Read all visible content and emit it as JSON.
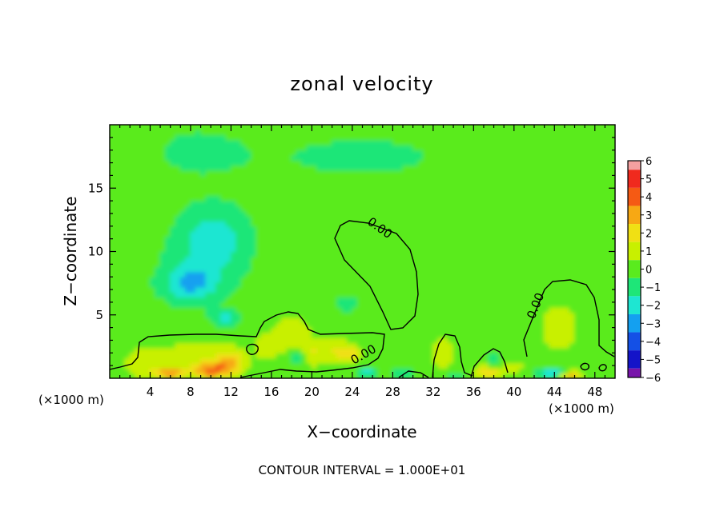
{
  "chart_data": {
    "type": "heatmap",
    "title": "zonal velocity",
    "xlabel": "X−coordinate",
    "ylabel": "Z−coordinate",
    "x_unit_left": "(×1000 m)",
    "x_unit_right": "(×1000 m)",
    "footer": "CONTOUR INTERVAL = 1.000E+01",
    "xlim": [
      0,
      50
    ],
    "ylim": [
      0,
      20
    ],
    "x_ticks": [
      4,
      8,
      12,
      16,
      20,
      24,
      28,
      32,
      36,
      40,
      44,
      48
    ],
    "x_tick_labels": [
      "4",
      "8",
      "12",
      "16",
      "20",
      "24",
      "28",
      "32",
      "36",
      "40",
      "44",
      "48"
    ],
    "y_ticks": [
      5,
      10,
      15
    ],
    "y_tick_labels": [
      "5",
      "10",
      "15"
    ],
    "colorbar": {
      "levels": [
        6,
        5,
        4,
        3,
        2,
        1,
        0,
        -1,
        -2,
        -3,
        -4,
        -5,
        -6
      ],
      "labels": [
        "6",
        "5",
        "4",
        "3",
        "2",
        "1",
        "0",
        "−1",
        "−2",
        "−3",
        "−4",
        "−5",
        "−6"
      ],
      "colors": [
        "#f4a0a0",
        "#f02a1e",
        "#f55a14",
        "#f7a814",
        "#f0e014",
        "#c8f000",
        "#5aeb1e",
        "#1ee678",
        "#1ee6d2",
        "#14a0f0",
        "#1450e6",
        "#1414c8",
        "#7814aa"
      ]
    },
    "contour_labels": [
      {
        "text": "0.00",
        "x": 26.5,
        "y": 11.6,
        "angle": 35
      },
      {
        "text": "0.00",
        "x": 25.3,
        "y": 1.6,
        "angle": -30
      },
      {
        "text": "0.00",
        "x": 42.5,
        "y": 5.6,
        "angle": -68
      }
    ],
    "field_features": [
      {
        "x": 8,
        "y": 7.5,
        "sx": 2.6,
        "sy": 1.3,
        "v": -2.3
      },
      {
        "x": 10.5,
        "y": 11,
        "sx": 3.2,
        "sy": 2.4,
        "v": -1.8
      },
      {
        "x": 9,
        "y": 9,
        "sx": 4.5,
        "sy": 3.5,
        "v": -0.8
      },
      {
        "x": 11.5,
        "y": 4.8,
        "sx": 1.4,
        "sy": 0.6,
        "v": -1.8
      },
      {
        "x": 23.5,
        "y": 5.9,
        "sx": 1.2,
        "sy": 0.6,
        "v": -1.2
      },
      {
        "x": 25,
        "y": 17.5,
        "sx": 14,
        "sy": 3,
        "v": -0.6
      },
      {
        "x": 8,
        "y": 18,
        "sx": 6,
        "sy": 3,
        "v": -0.5
      },
      {
        "x": 27,
        "y": 9,
        "sx": 2.5,
        "sy": 3,
        "v": 0.4
      },
      {
        "x": 44.5,
        "y": 4,
        "sx": 2.2,
        "sy": 2.2,
        "v": 0.9
      },
      {
        "x": 4,
        "y": 1.2,
        "sx": 2.5,
        "sy": 1.2,
        "v": 1.2
      },
      {
        "x": 10,
        "y": 0.6,
        "sx": 1.5,
        "sy": 0.6,
        "v": 3.2
      },
      {
        "x": 12,
        "y": 1.2,
        "sx": 1.4,
        "sy": 0.9,
        "v": 2.6
      },
      {
        "x": 6,
        "y": 0.4,
        "sx": 1.5,
        "sy": 0.4,
        "v": 3.0
      },
      {
        "x": 9,
        "y": 1.5,
        "sx": 3.5,
        "sy": 1.5,
        "v": 1.2
      },
      {
        "x": 15.5,
        "y": 2.5,
        "sx": 1.2,
        "sy": 1.0,
        "v": 1.0
      },
      {
        "x": 18,
        "y": 3.4,
        "sx": 1.8,
        "sy": 1.4,
        "v": 1.3
      },
      {
        "x": 18.5,
        "y": 1.8,
        "sx": 0.8,
        "sy": 0.6,
        "v": -2.0
      },
      {
        "x": 20,
        "y": 2,
        "sx": 1.2,
        "sy": 1.0,
        "v": 1.4
      },
      {
        "x": 22.5,
        "y": 2.2,
        "sx": 1.4,
        "sy": 1.0,
        "v": 1.5
      },
      {
        "x": 24,
        "y": 2.0,
        "sx": 0.9,
        "sy": 0.6,
        "v": 2.0
      },
      {
        "x": 25.5,
        "y": 0.5,
        "sx": 1.0,
        "sy": 0.4,
        "v": -2.0
      },
      {
        "x": 29,
        "y": 0.4,
        "sx": 1.0,
        "sy": 0.4,
        "v": -1.6
      },
      {
        "x": 33,
        "y": 2.0,
        "sx": 1.2,
        "sy": 1.2,
        "v": 1.3
      },
      {
        "x": 37.5,
        "y": 0.5,
        "sx": 1.2,
        "sy": 0.5,
        "v": 2.4
      },
      {
        "x": 38,
        "y": 1.5,
        "sx": 0.7,
        "sy": 0.5,
        "v": -1.4
      },
      {
        "x": 44,
        "y": 0.4,
        "sx": 1.5,
        "sy": 0.4,
        "v": -3.0
      },
      {
        "x": 45.5,
        "y": 0.3,
        "sx": 1.2,
        "sy": 0.3,
        "v": 4.0
      },
      {
        "x": 40,
        "y": 0.8,
        "sx": 1.0,
        "sy": 0.6,
        "v": 1.0
      },
      {
        "x": 34,
        "y": 0.3,
        "sx": 0.8,
        "sy": 0.3,
        "v": -1.5
      }
    ]
  }
}
